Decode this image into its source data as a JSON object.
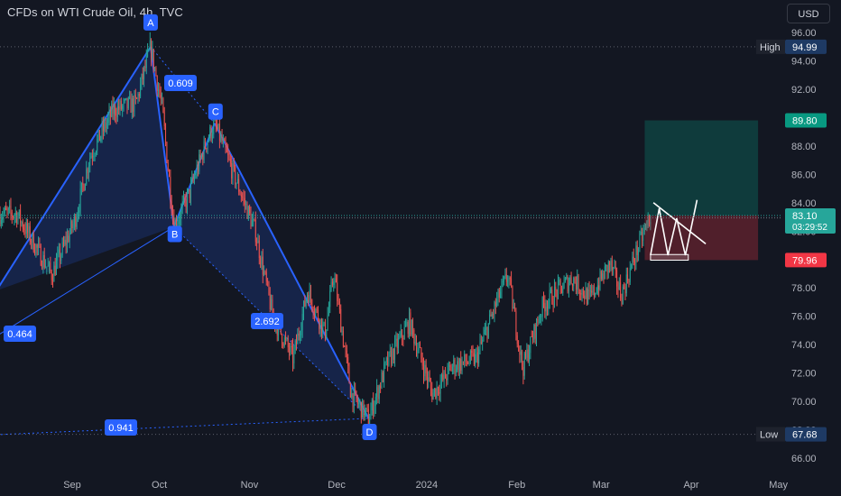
{
  "header": {
    "title": "CFDs on WTI Crude Oil, 4h, TVC",
    "currency": "USD"
  },
  "chart_data": {
    "type": "candlestick",
    "ylim": [
      64.8,
      97.2
    ],
    "yticks": [
      66.0,
      68.0,
      70.0,
      72.0,
      74.0,
      76.0,
      78.0,
      80.0,
      82.0,
      84.0,
      86.0,
      88.0,
      90.0,
      92.0,
      94.0,
      96.0
    ],
    "xticks": [
      {
        "label": "Sep",
        "date": "2023-09-01"
      },
      {
        "label": "Oct",
        "date": "2023-10-01"
      },
      {
        "label": "Nov",
        "date": "2023-11-01"
      },
      {
        "label": "Dec",
        "date": "2023-12-01"
      },
      {
        "label": "2024",
        "date": "2024-01-01"
      },
      {
        "label": "Feb",
        "date": "2024-02-01"
      },
      {
        "label": "Mar",
        "date": "2024-03-01"
      },
      {
        "label": "Apr",
        "date": "2024-04-01"
      },
      {
        "label": "May",
        "date": "2024-05-01"
      }
    ],
    "price_path": [
      {
        "date": "2023-08-13",
        "price": 83.2
      },
      {
        "date": "2023-08-18",
        "price": 81.4
      },
      {
        "date": "2023-08-25",
        "price": 78.9
      },
      {
        "date": "2023-09-02",
        "price": 82.8
      },
      {
        "date": "2023-09-07",
        "price": 87.2
      },
      {
        "date": "2023-09-15",
        "price": 90.5
      },
      {
        "date": "2023-09-23",
        "price": 91.0
      },
      {
        "date": "2023-09-28",
        "price": 94.99
      },
      {
        "date": "2023-10-02",
        "price": 90.6
      },
      {
        "date": "2023-10-06",
        "price": 82.3
      },
      {
        "date": "2023-10-11",
        "price": 84.5
      },
      {
        "date": "2023-10-17",
        "price": 88.2
      },
      {
        "date": "2023-10-20",
        "price": 89.6
      },
      {
        "date": "2023-10-26",
        "price": 86.3
      },
      {
        "date": "2023-11-03",
        "price": 82.0
      },
      {
        "date": "2023-11-09",
        "price": 76.0
      },
      {
        "date": "2023-11-16",
        "price": 73.0
      },
      {
        "date": "2023-11-21",
        "price": 77.8
      },
      {
        "date": "2023-11-27",
        "price": 74.8
      },
      {
        "date": "2023-11-30",
        "price": 79.0
      },
      {
        "date": "2023-12-06",
        "price": 70.5
      },
      {
        "date": "2023-12-12",
        "price": 68.8
      },
      {
        "date": "2023-12-18",
        "price": 72.5
      },
      {
        "date": "2023-12-26",
        "price": 75.6
      },
      {
        "date": "2024-01-03",
        "price": 70.5
      },
      {
        "date": "2024-01-10",
        "price": 72.5
      },
      {
        "date": "2024-01-18",
        "price": 73.0
      },
      {
        "date": "2024-01-26",
        "price": 77.5
      },
      {
        "date": "2024-01-29",
        "price": 78.9
      },
      {
        "date": "2024-02-03",
        "price": 72.3
      },
      {
        "date": "2024-02-10",
        "price": 76.8
      },
      {
        "date": "2024-02-20",
        "price": 78.7
      },
      {
        "date": "2024-02-26",
        "price": 77.2
      },
      {
        "date": "2024-03-04",
        "price": 79.7
      },
      {
        "date": "2024-03-08",
        "price": 77.5
      },
      {
        "date": "2024-03-14",
        "price": 81.0
      },
      {
        "date": "2024-03-18",
        "price": 83.1
      }
    ],
    "pattern": {
      "name": "harmonic",
      "points": [
        {
          "label": "A",
          "date": "2023-09-28",
          "price": 94.99
        },
        {
          "label": "B",
          "date": "2023-10-06",
          "price": 82.3
        },
        {
          "label": "C",
          "date": "2023-10-20",
          "price": 89.6
        },
        {
          "label": "D",
          "date": "2023-12-12",
          "price": 68.8
        }
      ],
      "ratios": [
        "0.609",
        "0.464",
        "2.692",
        "0.941"
      ]
    },
    "position": {
      "target": "89.80",
      "entry": "83.10",
      "stop": "79.96",
      "start": "2024-03-16",
      "end": "2024-04-24"
    },
    "triangle_annotation": true,
    "labels": {
      "high": {
        "text": "High",
        "value": "94.99"
      },
      "low": {
        "text": "Low",
        "value": "67.68"
      },
      "last": {
        "value": "83.10",
        "countdown": "03:29:52"
      },
      "prev": {
        "value": "82.93"
      },
      "target": {
        "value": "89.80"
      },
      "stop": {
        "value": "79.96"
      }
    },
    "colors": {
      "background": "#131722",
      "up": "#26a69a",
      "down": "#ef5350",
      "pattern_line": "#2962ff",
      "pattern_fill": "#2962ff",
      "profit": "#089981",
      "loss": "#f23645",
      "axis_text": "#b2b5be"
    }
  }
}
